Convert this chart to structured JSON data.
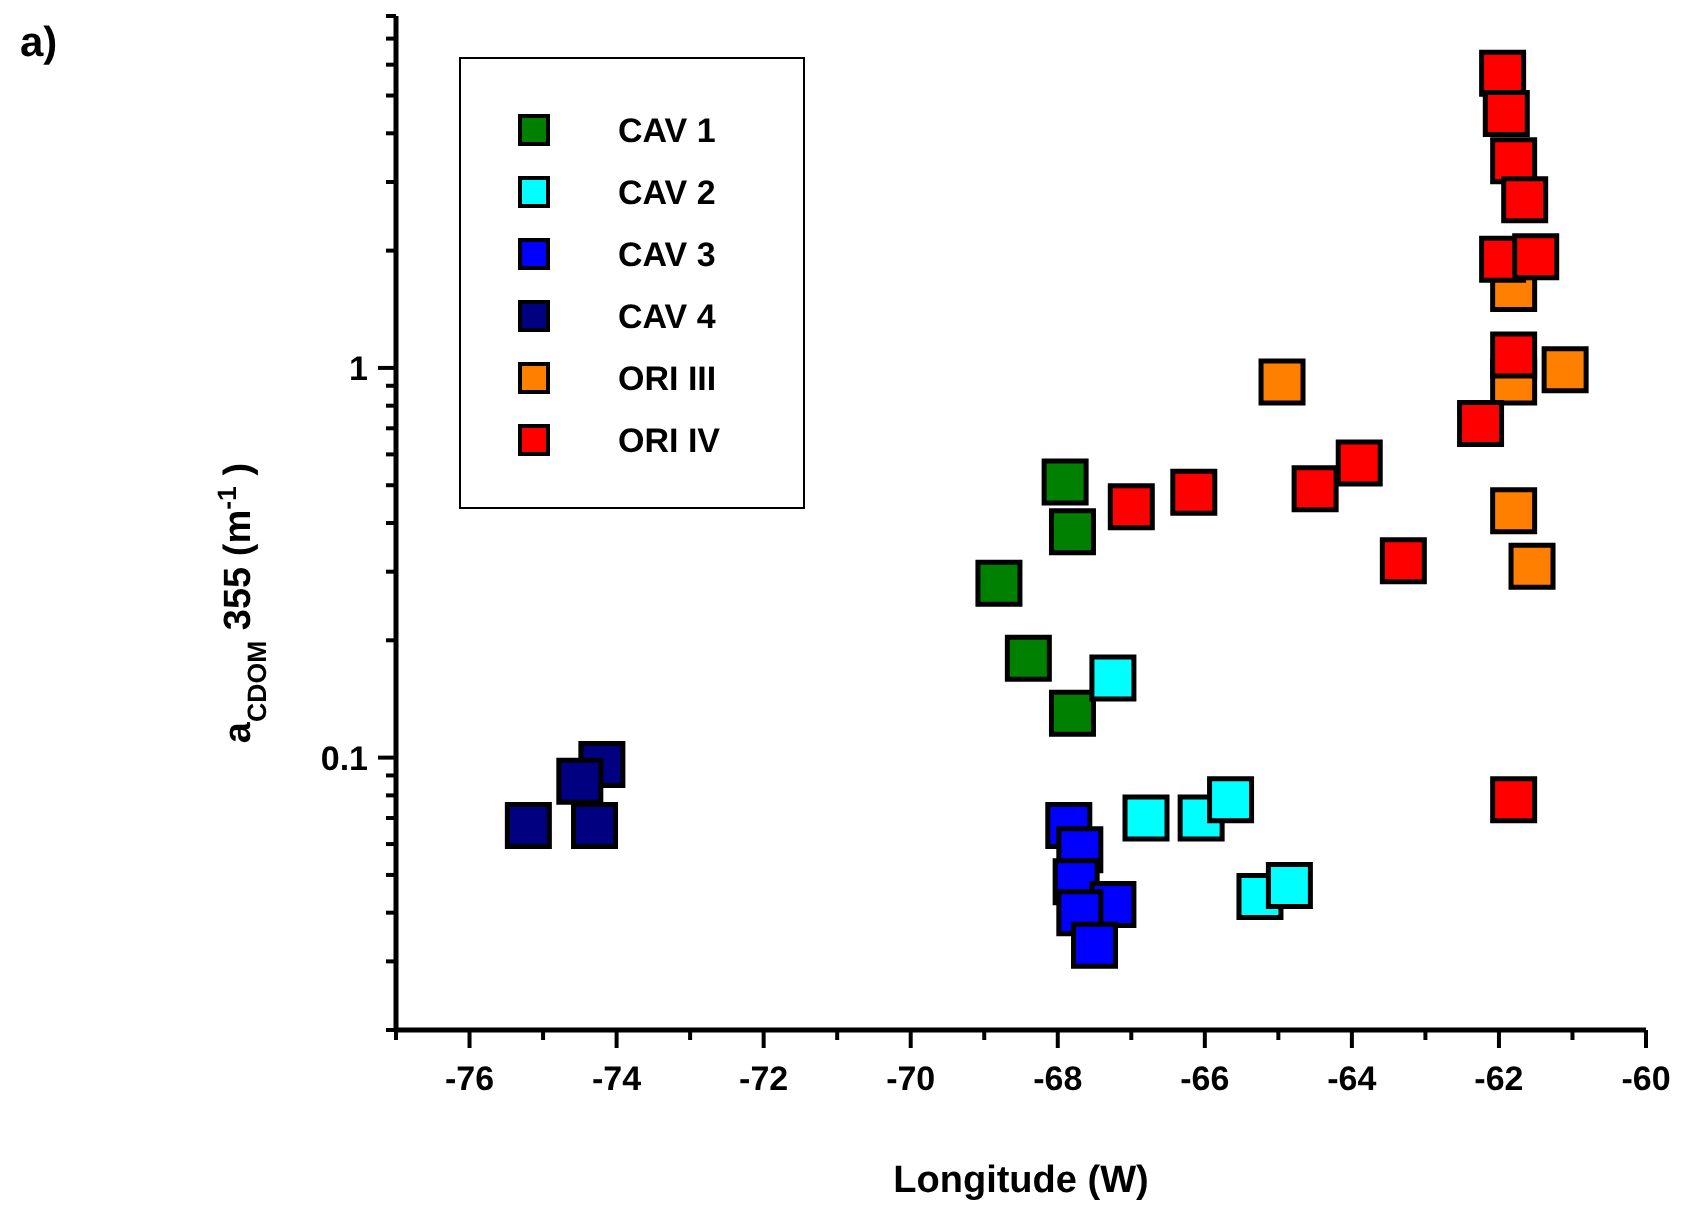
{
  "chart_data": {
    "type": "scatter",
    "xlabel": "Longitude (W)",
    "ylabel": "a$_{CDOM}$355 (m$^{-1}$)",
    "annotations": [
      "a)"
    ],
    "log": "y",
    "legend": "top left",
    "marker": "square",
    "grid": false,
    "xlim": [
      -77,
      -60
    ],
    "xticks": [
      {
        "value": -77,
        "label": null
      },
      -76,
      {
        "value": -75,
        "label": null
      },
      -74,
      {
        "value": -73,
        "label": null
      },
      -72,
      {
        "value": -71,
        "label": null
      },
      -70,
      {
        "value": -69,
        "label": null
      },
      -68,
      {
        "value": -67,
        "label": null
      },
      -66,
      {
        "value": -65,
        "label": null
      },
      -64,
      {
        "value": -63,
        "label": null
      },
      -62,
      {
        "value": -61,
        "label": null
      },
      -60
    ],
    "ylim": [
      0.02,
      8
    ],
    "yticks": [
      {
        "value": 0.02,
        "label": null
      },
      {
        "value": 0.03,
        "label": null
      },
      {
        "value": 0.04,
        "label": null
      },
      {
        "value": 0.05,
        "label": null
      },
      {
        "value": 0.06,
        "label": null
      },
      {
        "value": 0.07,
        "label": null
      },
      {
        "value": 0.08,
        "label": null
      },
      {
        "value": 0.09,
        "label": null
      },
      0.1,
      {
        "value": 0.2,
        "label": null
      },
      {
        "value": 0.3,
        "label": null
      },
      {
        "value": 0.4,
        "label": null
      },
      {
        "value": 0.5,
        "label": null
      },
      {
        "value": 0.6,
        "label": null
      },
      {
        "value": 0.7,
        "label": null
      },
      {
        "value": 0.8,
        "label": null
      },
      {
        "value": 0.9,
        "label": null
      },
      1,
      {
        "value": 2,
        "label": null
      },
      {
        "value": 3,
        "label": null
      },
      {
        "value": 4,
        "label": null
      },
      {
        "value": 5,
        "label": null
      },
      {
        "value": 6,
        "label": null
      },
      {
        "value": 7,
        "label": null
      },
      {
        "value": 8,
        "label": null
      }
    ],
    "series": [
      {
        "name": "CAV 1",
        "color": "#008000",
        "x": [
          -67.9,
          -67.8,
          -68.8,
          -68.4,
          -67.8
        ],
        "values": [
          0.51,
          0.38,
          0.28,
          0.18,
          0.13
        ]
      },
      {
        "name": "CAV 2",
        "color": "#00ffff",
        "x": [
          -67.25,
          -66.8,
          -66.05,
          -65.65,
          -65.25,
          -64.85
        ],
        "values": [
          0.16,
          0.07,
          0.07,
          0.078,
          0.044,
          0.047
        ]
      },
      {
        "name": "CAV 3",
        "color": "#0000ff",
        "x": [
          -67.85,
          -67.7,
          -67.75,
          -67.25,
          -67.7,
          -67.5
        ],
        "values": [
          0.067,
          0.058,
          0.048,
          0.042,
          0.04,
          0.033
        ]
      },
      {
        "name": "CAV 4",
        "color": "#000080",
        "x": [
          -75.2,
          -74.2,
          -74.5,
          -74.3
        ],
        "values": [
          0.067,
          0.096,
          0.087,
          0.067
        ]
      },
      {
        "name": "ORI III",
        "color": "#ff8000",
        "x": [
          -64.95,
          -61.1,
          -61.8,
          -61.8,
          -61.8,
          -61.55
        ],
        "values": [
          0.92,
          0.99,
          1.6,
          0.92,
          0.43,
          0.31
        ]
      },
      {
        "name": "ORI IV",
        "color": "#ff0000",
        "x": [
          -61.95,
          -61.9,
          -61.8,
          -61.65,
          -61.95,
          -61.5,
          -61.8,
          -62.25,
          -63.9,
          -64.5,
          -66.15,
          -67.0,
          -63.3,
          -61.8
        ],
        "values": [
          5.7,
          4.5,
          3.4,
          2.7,
          1.9,
          1.93,
          1.08,
          0.72,
          0.57,
          0.49,
          0.48,
          0.44,
          0.32,
          0.078
        ]
      }
    ]
  }
}
